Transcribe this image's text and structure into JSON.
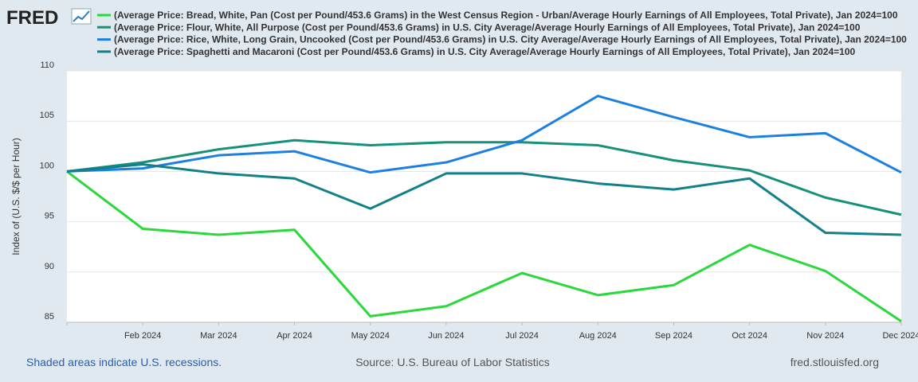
{
  "logo": "FRED",
  "chart_data": {
    "type": "line",
    "ylabel": "Index of (U.S. $/$ per Hour)",
    "categories": [
      null,
      "Feb 2024",
      "Mar 2024",
      "Apr 2024",
      "May 2024",
      "Jun 2024",
      "Jul 2024",
      "Aug 2024",
      "Sep 2024",
      "Oct 2024",
      "Nov 2024",
      "Dec 2024"
    ],
    "series": [
      {
        "name": "(Average Price: Bread, White, Pan (Cost per Pound/453.6 Grams) in the West Census Region - Urban/Average Hourly Earnings of All Employees, Total Private), Jan 2024=100",
        "color": "#2ad83c",
        "values": [
          100,
          94.3,
          93.7,
          94.2,
          85.6,
          86.6,
          89.9,
          87.7,
          88.7,
          92.7,
          90.1,
          85.1
        ]
      },
      {
        "name": "(Average Price: Flour, White, All Purpose (Cost per Pound/453.6 Grams) in U.S. City Average/Average Hourly Earnings of All Employees, Total Private), Jan 2024=100",
        "color": "#17907a",
        "values": [
          100,
          100.9,
          102.2,
          103.1,
          102.6,
          102.9,
          102.9,
          102.6,
          101.1,
          100.1,
          97.4,
          95.7
        ]
      },
      {
        "name": "(Average Price: Rice, White, Long Grain, Uncooked (Cost per Pound/453.6 Grams) in U.S. City Average/Average Hourly Earnings of All Employees, Total Private), Jan 2024=100",
        "color": "#1b80e2",
        "values": [
          100,
          100.3,
          101.6,
          102.0,
          99.9,
          100.9,
          103.1,
          107.5,
          105.4,
          103.4,
          103.8,
          99.9
        ]
      },
      {
        "name": "(Average Price: Spaghetti and Macaroni (Cost per Pound/453.6 Grams) in U.S. City Average/Average Hourly Earnings of All Employees, Total Private), Jan 2024=100",
        "color": "#12808a",
        "values": [
          100,
          100.7,
          99.8,
          99.3,
          96.3,
          99.8,
          99.8,
          98.8,
          98.2,
          99.3,
          93.9,
          93.7
        ]
      }
    ],
    "ylim": [
      85,
      110
    ],
    "yticks": [
      85,
      90,
      95,
      100,
      105,
      110
    ],
    "grid": true,
    "legend": "top"
  },
  "footer": {
    "note": "Shaded areas indicate U.S. recessions.",
    "source": "Source: U.S. Bureau of Labor Statistics",
    "site": "fred.stlouisfed.org"
  }
}
